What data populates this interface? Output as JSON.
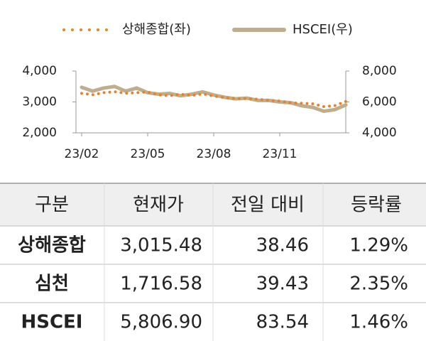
{
  "chart_data": {
    "type": "line",
    "categories": [
      "23/02",
      null,
      null,
      null,
      null,
      null,
      "23/05",
      null,
      null,
      null,
      null,
      null,
      "23/08",
      null,
      null,
      null,
      null,
      null,
      "23/11",
      null,
      null,
      null,
      null,
      null,
      null
    ],
    "series": [
      {
        "name": "상해종합(좌)",
        "color": "#e8822a",
        "style": "dotted",
        "values": [
          3280,
          3230,
          3300,
          3330,
          3280,
          3300,
          3320,
          3230,
          3200,
          3250,
          3210,
          3260,
          3190,
          3140,
          3110,
          3110,
          3090,
          3050,
          3030,
          2970,
          2960,
          2940,
          2850,
          2880,
          3015
        ]
      },
      {
        "name": "HSCEI(우)",
        "color": "#bfae8e",
        "style": "solid",
        "axis": "y2",
        "values": [
          6950,
          6700,
          6900,
          7000,
          6700,
          6900,
          6600,
          6500,
          6550,
          6400,
          6500,
          6650,
          6450,
          6300,
          6200,
          6250,
          6100,
          6100,
          6000,
          5950,
          5750,
          5650,
          5400,
          5500,
          5807
        ]
      }
    ],
    "ylim": [
      2000,
      4000
    ],
    "yticks": [
      {
        "value": 2000,
        "label": "2,000"
      },
      {
        "value": 3000,
        "label": "3,000"
      },
      {
        "value": 4000,
        "label": "4,000"
      }
    ],
    "y2lim": [
      4000,
      8000
    ],
    "y2ticks": [
      {
        "value": 4000,
        "label": "4,000"
      },
      {
        "value": 6000,
        "label": "6,000"
      },
      {
        "value": 8000,
        "label": "8,000"
      }
    ],
    "legend": "top"
  },
  "table": {
    "header": [
      "구분",
      "현재가",
      "전일 대비",
      "등락률"
    ],
    "rows": [
      [
        "상해종합",
        "3,015.48",
        "38.46",
        "1.29%"
      ],
      [
        "심천",
        "1,716.58",
        "39.43",
        "2.35%"
      ],
      [
        "HSCEI",
        "5,806.90",
        "83.54",
        "1.46%"
      ]
    ]
  }
}
